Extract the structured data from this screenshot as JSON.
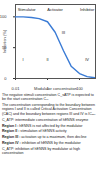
{
  "chart_data": {
    "type": "line",
    "x_label": "Modulator concentration",
    "y_label": "Inhibition (%)",
    "x": [
      0.01,
      0.03,
      0.1,
      0.3,
      1,
      3,
      10,
      30,
      100,
      300,
      1000
    ],
    "values": [
      100,
      100,
      99,
      97,
      92,
      75,
      45,
      20,
      8,
      3,
      1
    ],
    "color": "#3a7bd5",
    "log": "x",
    "xlim": [
      0.01,
      1000
    ],
    "xticks": [
      0.01,
      1,
      100
    ],
    "ylim": [
      0,
      120
    ],
    "yticks": [
      0,
      50,
      100
    ],
    "annotations": [
      {
        "text": "Stimulator",
        "x": 0.05,
        "y": 111
      },
      {
        "text": "Activator",
        "x": 3,
        "y": 111
      },
      {
        "text": "Inhibitor",
        "x": 300,
        "y": 111
      },
      {
        "text": "I",
        "x": 0.03,
        "y": 30
      },
      {
        "text": "II",
        "x": 1,
        "y": 30
      },
      {
        "text": "III",
        "x": 10,
        "y": 75
      },
      {
        "text": "IV",
        "x": 300,
        "y": 30
      }
    ]
  },
  "notes": {
    "paragraphs": [
      "The negative stimuli concentration C_sATP is expected to be the start concentration C₀.",
      "The concentration corresponding to the boundary between regions I and II is called Critical Activation Concentration (CAC) and the boundary between regions III and IV is IC₅₀.",
      "C_ATP: intermediate concentration of hENNS enzyme"
    ],
    "regions": [
      {
        "label": "Region I :",
        "text": "hENNS is not affected by the modulator"
      },
      {
        "label": "Region II :",
        "text": "stimulation of hENNS activity"
      },
      {
        "label": "Region III :",
        "text": "activation up to a maximum, then decline"
      },
      {
        "label": "Region IV :",
        "text": "inhibition of hENNS by the modulator"
      }
    ],
    "footer": "C_ATP: inhibition of hENNS by modulator at high concentration"
  }
}
